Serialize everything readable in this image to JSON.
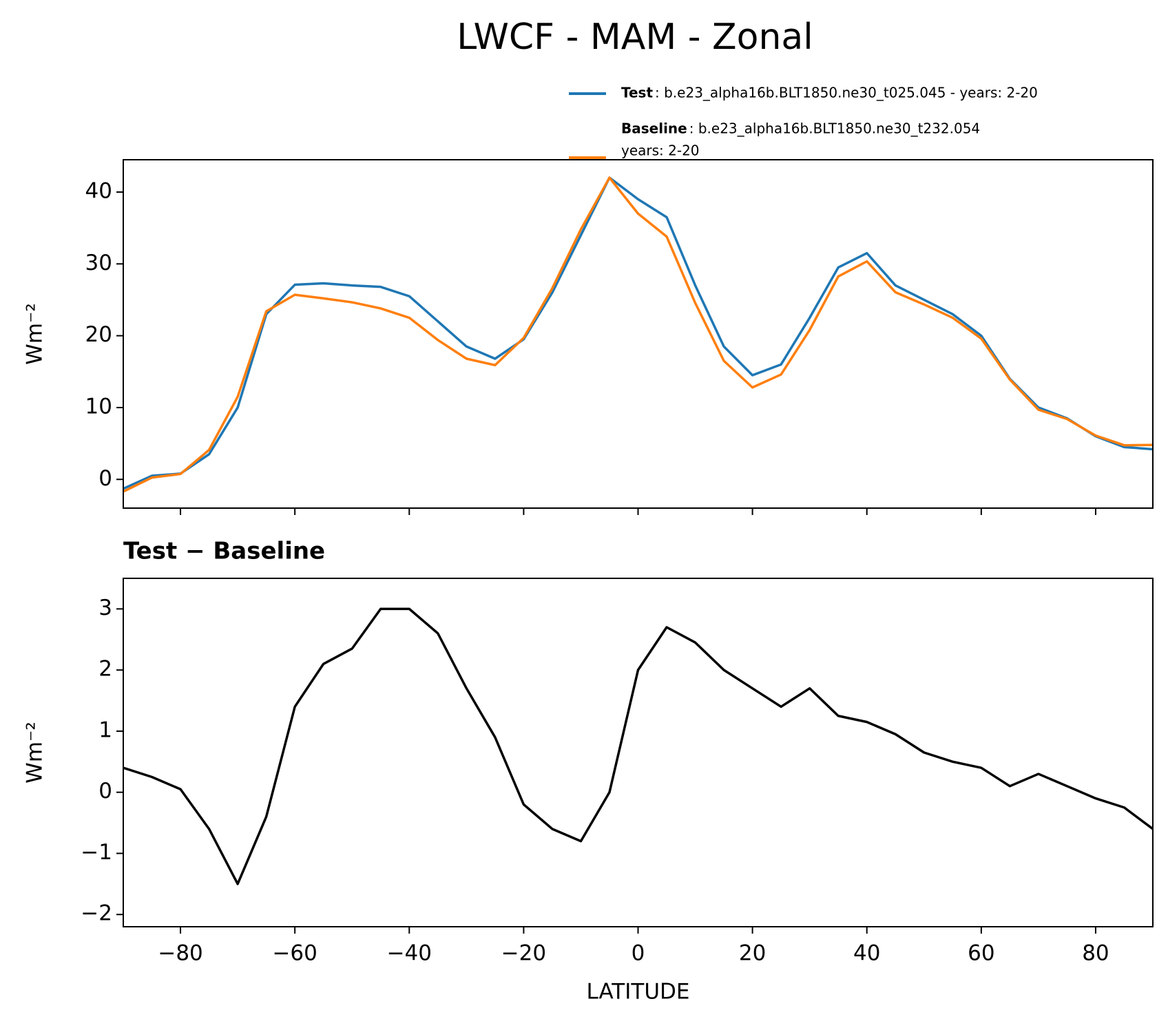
{
  "title": "LWCF - MAM - Zonal",
  "chart_data": [
    {
      "type": "line",
      "ylabel": "Wm⁻²",
      "x": [
        -90,
        -85,
        -80,
        -75,
        -70,
        -65,
        -60,
        -55,
        -50,
        -45,
        -40,
        -35,
        -30,
        -25,
        -20,
        -15,
        -10,
        -5,
        0,
        5,
        10,
        15,
        20,
        25,
        30,
        35,
        40,
        45,
        50,
        55,
        60,
        65,
        70,
        75,
        80,
        85,
        90
      ],
      "series": [
        {
          "name": "Test",
          "description": [
            ": b.e23_alpha16b.BLT1850.ne30_t025.045 - years: 2-20"
          ],
          "color": "#1f77b4",
          "values": [
            -1.3,
            0.5,
            0.8,
            3.5,
            10,
            23,
            27.1,
            27.3,
            27,
            26.8,
            25.5,
            22,
            18.5,
            16.8,
            19.5,
            26,
            34,
            42,
            39,
            36.5,
            27,
            18.5,
            14.5,
            16,
            22.5,
            29.5,
            31.5,
            27,
            25,
            23,
            20,
            14,
            10,
            8.5,
            6,
            4.5,
            4.2
          ]
        },
        {
          "name": "Baseline",
          "description": [
            ": b.e23_alpha16b.BLT1850.ne30_t232.054",
            "years: 2-20"
          ],
          "color": "#ff7f0e",
          "values": [
            -1.7,
            0.25,
            0.75,
            4.1,
            11.5,
            23.4,
            25.7,
            25.2,
            24.65,
            23.8,
            22.5,
            19.4,
            16.8,
            15.9,
            19.7,
            26.6,
            34.8,
            42,
            37,
            33.8,
            24.55,
            16.5,
            12.8,
            14.6,
            20.8,
            28.25,
            30.35,
            26.05,
            24.35,
            22.5,
            19.6,
            13.9,
            9.7,
            8.4,
            6.1,
            4.75,
            4.8
          ]
        }
      ],
      "xlim": [
        -90,
        90
      ],
      "xticks": [
        -80,
        -60,
        -40,
        -20,
        0,
        20,
        40,
        60,
        80
      ],
      "ylim": [
        -4,
        44.5
      ],
      "yticks": [
        0,
        10,
        20,
        30,
        40
      ],
      "legend": "top right"
    },
    {
      "type": "line",
      "title": "Test − Baseline",
      "ylabel": "Wm⁻²",
      "xlabel": "LATITUDE",
      "x": [
        -90,
        -85,
        -80,
        -75,
        -70,
        -65,
        -60,
        -55,
        -50,
        -45,
        -40,
        -35,
        -30,
        -25,
        -20,
        -15,
        -10,
        -5,
        0,
        5,
        10,
        15,
        20,
        25,
        30,
        35,
        40,
        45,
        50,
        55,
        60,
        65,
        70,
        75,
        80,
        85,
        90
      ],
      "series": [
        {
          "color": "#000000",
          "values": [
            0.4,
            0.25,
            0.05,
            -0.6,
            -1.5,
            -0.4,
            1.4,
            2.1,
            2.35,
            3.0,
            3.0,
            2.6,
            1.7,
            0.9,
            -0.2,
            -0.6,
            -0.8,
            0.0,
            2.0,
            2.7,
            2.45,
            2.0,
            1.7,
            1.4,
            1.7,
            1.25,
            1.15,
            0.95,
            0.65,
            0.5,
            0.4,
            0.1,
            0.3,
            0.1,
            -0.1,
            -0.25,
            -0.6
          ]
        }
      ],
      "xlim": [
        -90,
        90
      ],
      "xticks": [
        {
          "value": -80,
          "label": "−80"
        },
        {
          "value": -60,
          "label": "−60"
        },
        {
          "value": -40,
          "label": "−40"
        },
        {
          "value": -20,
          "label": "−20"
        },
        0,
        20,
        40,
        60,
        80
      ],
      "ylim": [
        -2.2,
        3.5
      ],
      "yticks": [
        {
          "value": -2,
          "label": "−2"
        },
        {
          "value": -1,
          "label": "−1"
        },
        0,
        1,
        2,
        3
      ]
    }
  ]
}
